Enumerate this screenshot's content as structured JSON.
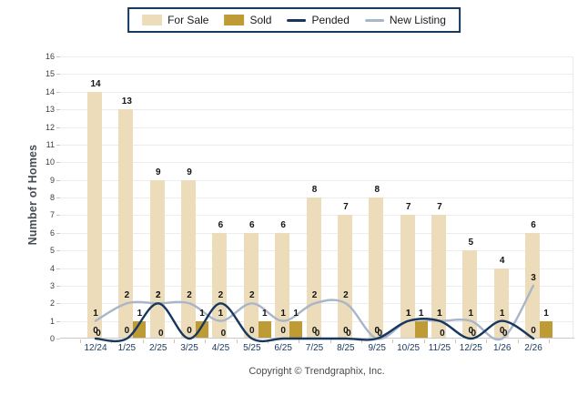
{
  "legend": {
    "border_color": "#17375e",
    "items": [
      {
        "label": "For Sale",
        "swatch": "bar",
        "color": "#ecdcba"
      },
      {
        "label": "Sold",
        "swatch": "bar",
        "color": "#bf9b35"
      },
      {
        "label": "Pended",
        "swatch": "line",
        "color": "#17375e"
      },
      {
        "label": "New Listing",
        "swatch": "line",
        "color": "#a9b5c9"
      }
    ]
  },
  "y_axis": {
    "title": "Number of Homes",
    "min": 0,
    "max": 16,
    "step": 1,
    "ticks": [
      "0",
      "1",
      "2",
      "3",
      "4",
      "5",
      "6",
      "7",
      "8",
      "9",
      "10",
      "11",
      "12",
      "13",
      "14",
      "15",
      "16"
    ]
  },
  "x_axis": {
    "labels": [
      "12/24",
      "1/25",
      "2/25",
      "3/25",
      "4/25",
      "5/25",
      "6/25",
      "7/25",
      "8/25",
      "9/25",
      "10/25",
      "11/25",
      "12/25",
      "1/26",
      "2/26"
    ]
  },
  "footer": {
    "copyright": "Copyright © Trendgraphix, Inc."
  },
  "chart_data": {
    "type": "bar+line combo",
    "categories": [
      "12/24",
      "1/25",
      "2/25",
      "3/25",
      "4/25",
      "5/25",
      "6/25",
      "7/25",
      "8/25",
      "9/25",
      "10/25",
      "11/25",
      "12/25",
      "1/26",
      "2/26"
    ],
    "series": [
      {
        "name": "For Sale",
        "type": "bar",
        "color": "#ecdcba",
        "values": [
          14,
          13,
          9,
          9,
          6,
          6,
          6,
          8,
          7,
          8,
          7,
          7,
          5,
          4,
          6
        ]
      },
      {
        "name": "Sold",
        "type": "bar",
        "color": "#bf9b35",
        "values": [
          0,
          1,
          0,
          1,
          0,
          1,
          1,
          0,
          0,
          0,
          1,
          0,
          0,
          0,
          1
        ]
      },
      {
        "name": "Pended",
        "type": "line",
        "color": "#17375e",
        "values": [
          0,
          0,
          2,
          0,
          2,
          0,
          0,
          0,
          0,
          0,
          1,
          1,
          0,
          1,
          0
        ]
      },
      {
        "name": "New Listing",
        "type": "line",
        "color": "#a9b5c9",
        "values": [
          1,
          2,
          2,
          2,
          1,
          2,
          1,
          2,
          2,
          0,
          1,
          1,
          1,
          0,
          3
        ]
      }
    ],
    "title": "",
    "xlabel": "",
    "ylabel": "Number of Homes",
    "ylim": [
      0,
      16
    ],
    "grid": "horizontal",
    "legend_position": "top-center",
    "data_labels": "all points, bold"
  }
}
